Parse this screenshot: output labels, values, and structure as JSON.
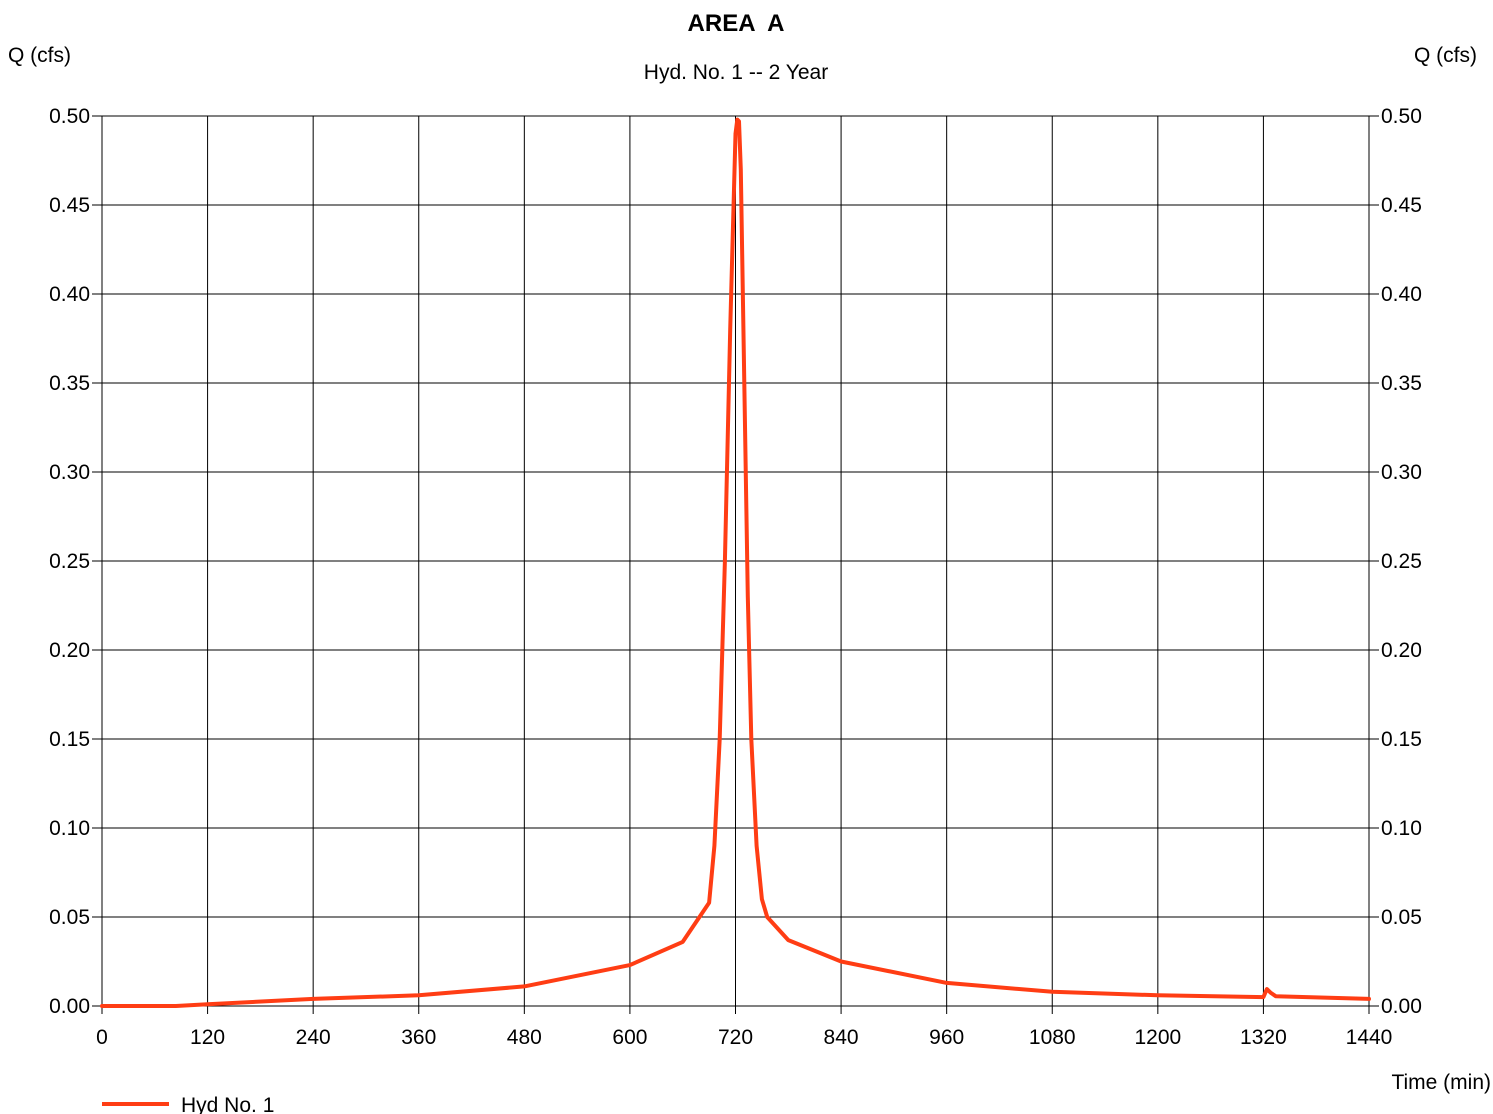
{
  "chart_data": {
    "type": "line",
    "title": "AREA  A",
    "subtitle": "Hyd. No. 1 -- 2 Year",
    "ylabel_left": "Q (cfs)",
    "ylabel_right": "Q (cfs)",
    "xlabel": "Time (min)",
    "xlim": [
      0,
      1440
    ],
    "ylim": [
      0,
      0.5
    ],
    "x_ticks": [
      "0",
      "120",
      "240",
      "360",
      "480",
      "600",
      "720",
      "840",
      "960",
      "1080",
      "1200",
      "1320",
      "1440"
    ],
    "y_ticks": [
      "0.00",
      "0.05",
      "0.10",
      "0.15",
      "0.20",
      "0.25",
      "0.30",
      "0.35",
      "0.40",
      "0.45",
      "0.50"
    ],
    "grid": true,
    "legend_position": "bottom-left",
    "series": [
      {
        "name": "Hyd No. 1",
        "color": "#ff3d14",
        "x": [
          0,
          84,
          120,
          240,
          360,
          480,
          600,
          660,
          690,
          696,
          702,
          708,
          714,
          720,
          722,
          724,
          726,
          730,
          734,
          738,
          744,
          750,
          756,
          780,
          840,
          960,
          1080,
          1200,
          1320,
          1324,
          1328,
          1334,
          1440
        ],
        "y": [
          0.0,
          0.0,
          0.001,
          0.004,
          0.006,
          0.011,
          0.023,
          0.036,
          0.058,
          0.09,
          0.15,
          0.25,
          0.38,
          0.49,
          0.498,
          0.497,
          0.47,
          0.35,
          0.23,
          0.15,
          0.09,
          0.06,
          0.05,
          0.037,
          0.025,
          0.013,
          0.008,
          0.006,
          0.005,
          0.0095,
          0.0075,
          0.0055,
          0.004
        ]
      }
    ]
  }
}
